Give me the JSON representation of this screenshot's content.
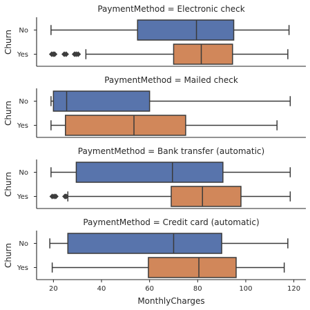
{
  "chart_data": {
    "type": "box",
    "x_axis": {
      "label": "MonthlyCharges",
      "ticks": [
        20,
        40,
        60,
        80,
        100,
        120
      ],
      "range": [
        13,
        125
      ]
    },
    "y_axis": {
      "label": "Churn",
      "categories": [
        "No",
        "Yes"
      ]
    },
    "colors": {
      "No": "#5874ac",
      "Yes": "#d1875a"
    },
    "facets": [
      {
        "title": "PaymentMethod = Electronic check",
        "boxes": [
          {
            "category": "No",
            "whisker_low": 19,
            "q1": 55,
            "median": 79.5,
            "q3": 95,
            "whisker_high": 118,
            "outliers": []
          },
          {
            "category": "Yes",
            "whisker_low": 33.5,
            "q1": 70,
            "median": 81.5,
            "q3": 94.5,
            "whisker_high": 117.5,
            "outliers": [
              19.3,
              20,
              20.5,
              24.5,
              25.3,
              28.8,
              29.5,
              30.3
            ]
          }
        ]
      },
      {
        "title": "PaymentMethod = Mailed check",
        "boxes": [
          {
            "category": "No",
            "whisker_low": 19,
            "q1": 20,
            "median": 25.5,
            "q3": 60,
            "whisker_high": 118.5,
            "outliers": []
          },
          {
            "category": "Yes",
            "whisker_low": 19,
            "q1": 25,
            "median": 53.5,
            "q3": 75,
            "whisker_high": 113,
            "outliers": []
          }
        ]
      },
      {
        "title": "PaymentMethod = Bank transfer (automatic)",
        "boxes": [
          {
            "category": "No",
            "whisker_low": 19,
            "q1": 29.5,
            "median": 69.5,
            "q3": 90.5,
            "whisker_high": 118.5,
            "outliers": []
          },
          {
            "category": "Yes",
            "whisker_low": 26,
            "q1": 69,
            "median": 82,
            "q3": 98,
            "whisker_high": 118.5,
            "outliers": [
              19.5,
              20.3,
              21,
              24.8,
              25.3
            ]
          }
        ]
      },
      {
        "title": "PaymentMethod = Credit card (automatic)",
        "boxes": [
          {
            "category": "No",
            "whisker_low": 18.5,
            "q1": 26,
            "median": 70,
            "q3": 90,
            "whisker_high": 117.5,
            "outliers": []
          },
          {
            "category": "Yes",
            "whisker_low": 19.5,
            "q1": 59.5,
            "median": 80.5,
            "q3": 96,
            "whisker_high": 116,
            "outliers": []
          }
        ]
      }
    ]
  }
}
